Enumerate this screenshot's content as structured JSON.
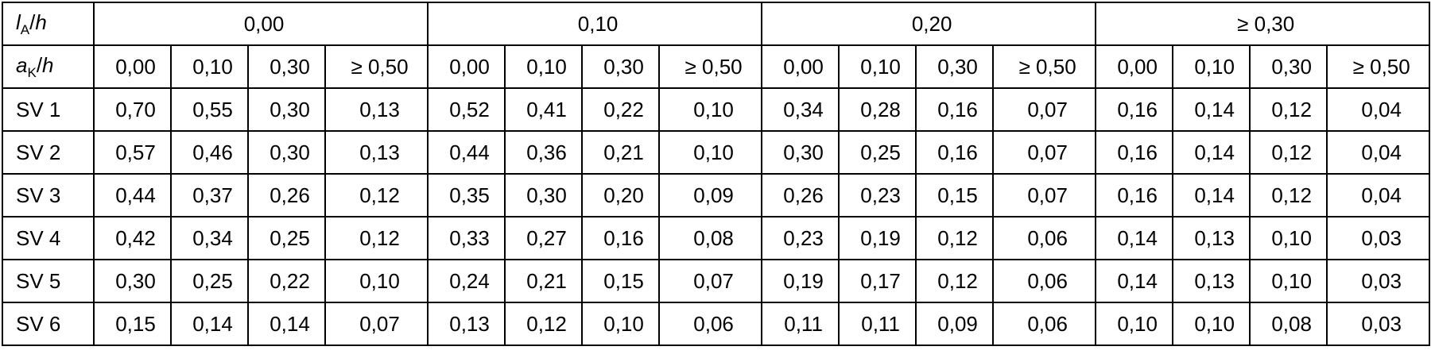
{
  "table": {
    "corner_top": {
      "var": "l",
      "sub": "A",
      "slash": "/",
      "den": "h"
    },
    "corner_sub": {
      "var": "a",
      "sub": "K",
      "slash": "/",
      "den": "h"
    },
    "groups": [
      "0,00",
      "0,10",
      "0,20",
      "≥ 0,30"
    ],
    "subcolumns": [
      "0,00",
      "0,10",
      "0,30",
      "≥ 0,50"
    ],
    "rows": [
      {
        "label": "SV 1",
        "values": [
          "0,70",
          "0,55",
          "0,30",
          "0,13",
          "0,52",
          "0,41",
          "0,22",
          "0,10",
          "0,34",
          "0,28",
          "0,16",
          "0,07",
          "0,16",
          "0,14",
          "0,12",
          "0,04"
        ]
      },
      {
        "label": "SV 2",
        "values": [
          "0,57",
          "0,46",
          "0,30",
          "0,13",
          "0,44",
          "0,36",
          "0,21",
          "0,10",
          "0,30",
          "0,25",
          "0,16",
          "0,07",
          "0,16",
          "0,14",
          "0,12",
          "0,04"
        ]
      },
      {
        "label": "SV 3",
        "values": [
          "0,44",
          "0,37",
          "0,26",
          "0,12",
          "0,35",
          "0,30",
          "0,20",
          "0,09",
          "0,26",
          "0,23",
          "0,15",
          "0,07",
          "0,16",
          "0,14",
          "0,12",
          "0,04"
        ]
      },
      {
        "label": "SV 4",
        "values": [
          "0,42",
          "0,34",
          "0,25",
          "0,12",
          "0,33",
          "0,27",
          "0,16",
          "0,08",
          "0,23",
          "0,19",
          "0,12",
          "0,06",
          "0,14",
          "0,13",
          "0,10",
          "0,03"
        ]
      },
      {
        "label": "SV 5",
        "values": [
          "0,30",
          "0,25",
          "0,22",
          "0,10",
          "0,24",
          "0,21",
          "0,15",
          "0,07",
          "0,19",
          "0,17",
          "0,12",
          "0,06",
          "0,14",
          "0,13",
          "0,10",
          "0,03"
        ]
      },
      {
        "label": "SV 6",
        "values": [
          "0,15",
          "0,14",
          "0,14",
          "0,07",
          "0,13",
          "0,12",
          "0,10",
          "0,06",
          "0,11",
          "0,11",
          "0,09",
          "0,06",
          "0,10",
          "0,10",
          "0,08",
          "0,03"
        ]
      }
    ]
  }
}
